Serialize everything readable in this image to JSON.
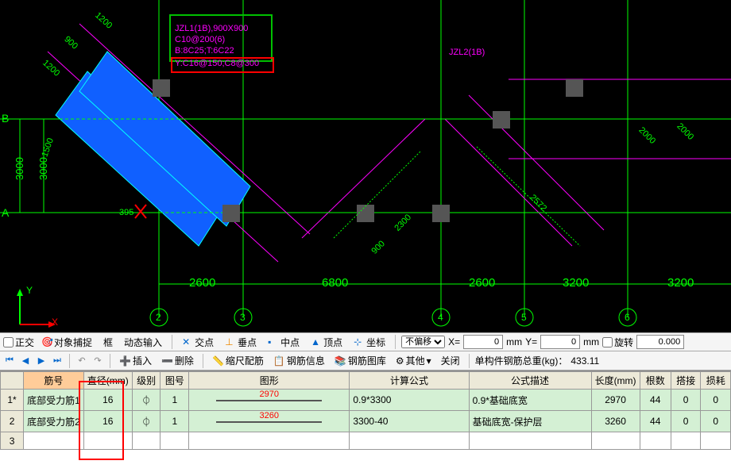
{
  "cad": {
    "bg": "#000000",
    "grid_color": "#00ff00",
    "beam_color": "#ff00ff",
    "select_color": "#1060ff",
    "dim_color": "#00ff00",
    "text_color": "#ff00ff",
    "label_box": {
      "lines": [
        "JZL1(1B),900X900",
        "C10@200(6)",
        "B:8C25;T:6C22",
        "Y:C16@150;C8@300"
      ]
    },
    "label2": "JZL2(1B)",
    "dims_h": [
      "2600",
      "6800",
      "2600",
      "3200",
      "3200"
    ],
    "dims_diag": [
      "1200",
      "900",
      "1200",
      "1500",
      "900",
      "2000",
      "2000"
    ],
    "dim_3000a": "3000",
    "dim_3000b": "3000",
    "dim_395": "395",
    "dim_2300": "2300",
    "dim_2572": "2572",
    "grid_letters": [
      "B",
      "A"
    ],
    "grid_circles": [
      "2",
      "3",
      "4",
      "5",
      "6"
    ]
  },
  "tb1": {
    "ortho": "正交",
    "snap": "对象捕捉",
    "frame": "框",
    "dynamic": "动态输入",
    "cross": "交点",
    "perp": "垂点",
    "mid": "中点",
    "top": "顶点",
    "coord": "坐标",
    "offset": "不偏移",
    "x_label": "X=",
    "x_val": "0",
    "mm": "mm",
    "y_label": "Y=",
    "y_val": "0",
    "rotate": "旋转",
    "angle": "0.000"
  },
  "tb2": {
    "insert": "插入",
    "delete": "删除",
    "scale": "缩尺配筋",
    "info": "钢筋信息",
    "lib": "钢筋图库",
    "other": "其他",
    "close": "关闭",
    "total_label": "单构件钢筋总重(kg)：",
    "total_val": "433.11"
  },
  "table": {
    "headers": [
      "",
      "筋号",
      "直径(mm)",
      "级别",
      "图号",
      "图形",
      "计算公式",
      "公式描述",
      "长度(mm)",
      "根数",
      "搭接",
      "损耗"
    ],
    "highlight_col": 1,
    "rows": [
      {
        "idx": "1*",
        "name": "底部受力筋1",
        "dia": "16",
        "grade": "⏀",
        "fig": "1",
        "shape_len": "2970",
        "formula": "0.9*3300",
        "desc": "0.9*基础底宽",
        "len": "2970",
        "count": "44",
        "lap": "0",
        "loss": "0"
      },
      {
        "idx": "2",
        "name": "底部受力筋2",
        "dia": "16",
        "grade": "⏀",
        "fig": "1",
        "shape_len": "3260",
        "formula": "3300-40",
        "desc": "基础底宽-保护层",
        "len": "3260",
        "count": "44",
        "lap": "0",
        "loss": "0"
      }
    ],
    "empty_idx": "3"
  }
}
